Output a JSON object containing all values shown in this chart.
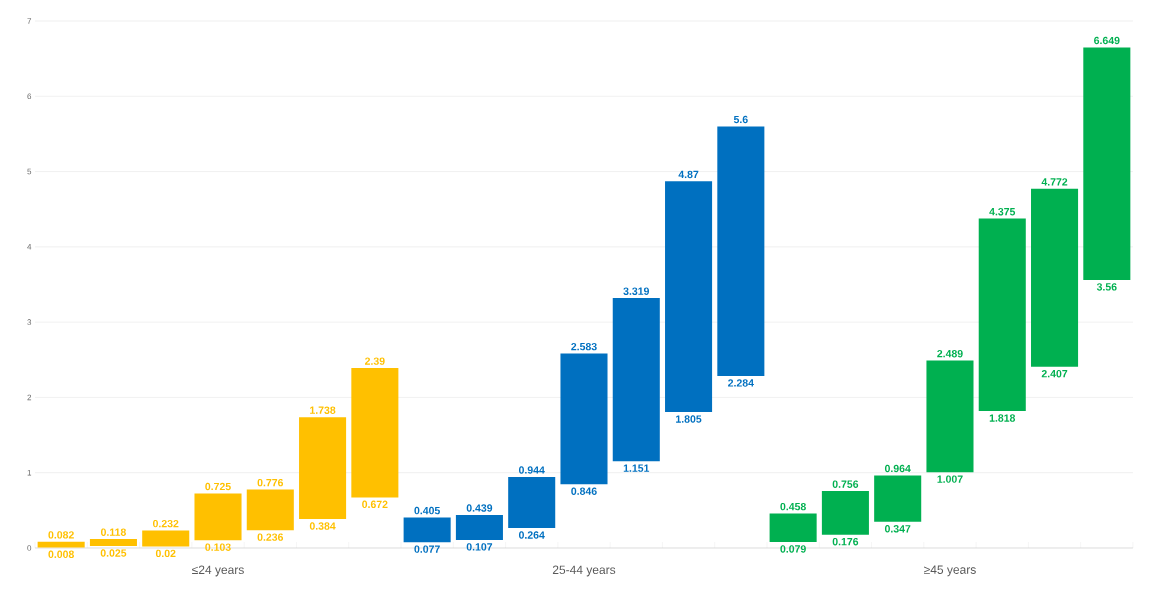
{
  "chart_data": {
    "type": "bar",
    "categories": [
      null,
      null,
      null,
      "≤24 years",
      null,
      null,
      null,
      null,
      null,
      null,
      "25-44 years",
      null,
      null,
      null,
      null,
      null,
      null,
      "≥45 years",
      null,
      null,
      null
    ],
    "base": [
      0.008,
      0.025,
      0.02,
      0.103,
      0.236,
      0.384,
      0.672,
      0.077,
      0.107,
      0.264,
      0.846,
      1.151,
      1.805,
      2.284,
      0.079,
      0.176,
      0.347,
      1.007,
      1.818,
      2.407,
      3.56
    ],
    "values": [
      0.074,
      0.093,
      0.212,
      0.622,
      0.54,
      1.354,
      1.718,
      0.328,
      0.332,
      0.68,
      1.737,
      2.168,
      3.065,
      3.316,
      0.379,
      0.58,
      0.617,
      1.482,
      2.557,
      2.365,
      3.089
    ],
    "colors": [
      "#ffc000",
      "#ffc000",
      "#ffc000",
      "#ffc000",
      "#ffc000",
      "#ffc000",
      "#ffc000",
      "#0070c0",
      "#0070c0",
      "#0070c0",
      "#0070c0",
      "#0070c0",
      "#0070c0",
      "#0070c0",
      "#00b050",
      "#00b050",
      "#00b050",
      "#00b050",
      "#00b050",
      "#00b050",
      "#00b050"
    ],
    "value_labels": [
      "0.082",
      "0.118",
      "0.232",
      "0.725",
      "0.776",
      "1.738",
      "2.39",
      "0.405",
      "0.439",
      "0.944",
      "2.583",
      "3.319",
      "4.87",
      "5.6",
      "0.458",
      "0.756",
      "0.964",
      "2.489",
      "4.375",
      "4.772",
      "6.649"
    ],
    "annotations": [
      {
        "text": "0.008",
        "y": 0.008
      },
      {
        "text": "0.025",
        "y": 0.025
      },
      {
        "text": "0.02",
        "y": 0.02
      },
      {
        "text": "0.103",
        "y": 0.103
      },
      {
        "text": "0.236",
        "y": 0.236
      },
      {
        "text": "0.384",
        "y": 0.384
      },
      {
        "text": "0.672",
        "y": 0.672
      },
      {
        "text": "0.077",
        "y": 0.077
      },
      {
        "text": "0.107",
        "y": 0.107
      },
      {
        "text": "0.264",
        "y": 0.264
      },
      {
        "text": "0.846",
        "y": 0.846
      },
      {
        "text": "1.151",
        "y": 1.151
      },
      {
        "text": "1.805",
        "y": 1.805
      },
      {
        "text": "2.284",
        "y": 2.284
      },
      {
        "text": "0.079",
        "y": 0.079
      },
      {
        "text": "0.176",
        "y": 0.176
      },
      {
        "text": "0.347",
        "y": 0.347
      },
      {
        "text": "1.007",
        "y": 1.007
      },
      {
        "text": "1.818",
        "y": 1.818
      },
      {
        "text": "2.407",
        "y": 2.407
      },
      {
        "text": "3.56",
        "y": 3.56
      }
    ],
    "ylim": [
      0,
      7
    ],
    "yticks": [
      0,
      1,
      2,
      3,
      4,
      5,
      6,
      7
    ],
    "grid": "y"
  }
}
